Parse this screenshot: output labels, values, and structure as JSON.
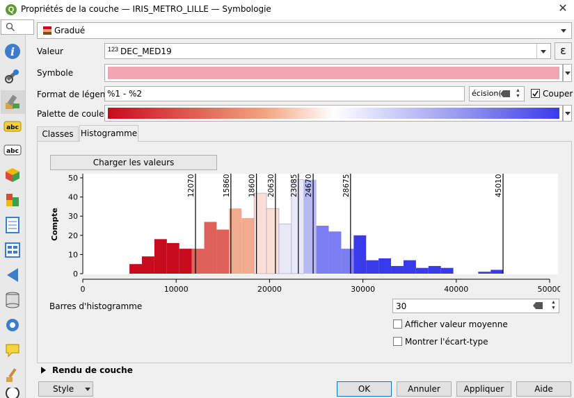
{
  "window": {
    "title": "Propriétés de la couche — IRIS_METRO_LILLE — Symbologie"
  },
  "sidebar": {
    "search_icon": "search-icon",
    "items": [
      "info-icon",
      "source-icon",
      "symbology-icon",
      "labels-icon",
      "masks-icon",
      "3d-view-icon",
      "diagrams-icon",
      "fields-icon",
      "attributes-form-icon",
      "joins-icon",
      "auxiliary-storage-icon",
      "actions-icon",
      "display-icon",
      "rendering-icon",
      "temporal-icon"
    ]
  },
  "renderer": {
    "type": "Gradué"
  },
  "value": {
    "label": "Valeur",
    "type_badge": "123",
    "field": "DEC_MED19",
    "expression_icon": "ε"
  },
  "symbol": {
    "label": "Symbole",
    "color": "#f2a6b3"
  },
  "legend_format": {
    "label": "Format de légende",
    "value": "%1 - %2",
    "precision_text": "écision(",
    "couper_label": "Couper",
    "couper_checked": true
  },
  "color_ramp": {
    "label": "Palette de couleur"
  },
  "tabs": {
    "classes": "Classes",
    "histogram": "Histogramme",
    "active": "Histogramme"
  },
  "load_values_button": "Charger les valeurs",
  "chart_data": {
    "type": "bar",
    "ylabel": "Compte",
    "xlim": [
      0,
      50000
    ],
    "ylim": [
      0,
      50
    ],
    "xticks": [
      0,
      10000,
      20000,
      30000,
      40000,
      50000
    ],
    "xtick_labels": [
      "0",
      "10000",
      "20000",
      "30000",
      "40000",
      "50000"
    ],
    "yticks": [
      0,
      10,
      20,
      30,
      40,
      50
    ],
    "bin_start": 5000,
    "bin_width": 1334,
    "bin_counts": [
      5,
      9,
      18,
      16,
      13,
      13,
      27,
      23,
      34,
      29,
      42,
      34,
      26,
      49,
      49,
      25,
      22,
      13,
      20,
      7,
      8,
      4,
      7,
      3,
      4,
      3,
      0,
      0,
      1,
      2
    ],
    "breaks": [
      12070,
      15860,
      18600,
      20630,
      23085,
      24670,
      28675,
      45010
    ],
    "break_labels": [
      "12070",
      "15860",
      "18600",
      "20630",
      "23085",
      "24670",
      "28675",
      "45010"
    ],
    "class_colors": [
      "#c80a1e",
      "#e0605a",
      "#f2ab8e",
      "#fbdfd6",
      "#e8e8f7",
      "#b8b8f5",
      "#7d7df2",
      "#3a3ae8"
    ]
  },
  "histogram_bars": {
    "label": "Barres d'histogramme",
    "value": "30"
  },
  "show_mean": {
    "label": "Afficher valeur moyenne",
    "checked": false
  },
  "show_stddev": {
    "label": "Montrer l'écart-type",
    "checked": false
  },
  "rendering_section": {
    "label": "Rendu de couche"
  },
  "footer": {
    "style": "Style",
    "ok": "OK",
    "cancel": "Annuler",
    "apply": "Appliquer",
    "help": "Aide"
  }
}
